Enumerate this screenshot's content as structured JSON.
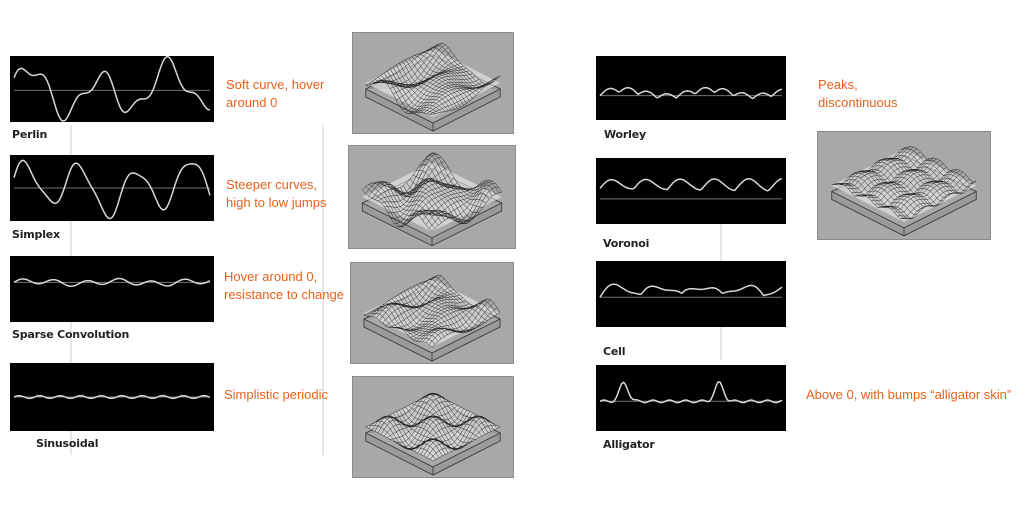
{
  "colors": {
    "panel_bg": "#000000",
    "curve": "#d8d8d8",
    "axis": "#6f7280",
    "annotation": "#e8611a",
    "surface_bg": "#a8a8a8"
  },
  "noise_types": [
    {
      "id": "perlin",
      "label": "Perlin",
      "description_lines": [
        "Soft curve, hover",
        "around 0"
      ],
      "wave": "perlin"
    },
    {
      "id": "simplex",
      "label": "Simplex",
      "description_lines": [
        "Steeper curves,",
        "high to low jumps"
      ],
      "wave": "simplex"
    },
    {
      "id": "sparse",
      "label": "Sparse Convolution",
      "description_lines": [
        "Hover around 0,",
        "resistance to change"
      ],
      "wave": "sparse"
    },
    {
      "id": "sinusoidal",
      "label": "Sinusoidal",
      "description_lines": [
        "Simplistic periodic"
      ],
      "wave": "sinusoidal"
    },
    {
      "id": "worley",
      "label": "Worley",
      "description_lines": [
        "Peaks,",
        "discontinuous"
      ],
      "wave": "worley"
    },
    {
      "id": "voronoi",
      "label": "Voronoi",
      "description_lines": [],
      "wave": "voronoi"
    },
    {
      "id": "cell",
      "label": "Cell",
      "description_lines": [],
      "wave": "cell"
    },
    {
      "id": "alligator",
      "label": "Alligator",
      "description_lines": [
        "Above 0, with bumps “alligator skin”"
      ],
      "wave": "alligator"
    }
  ]
}
